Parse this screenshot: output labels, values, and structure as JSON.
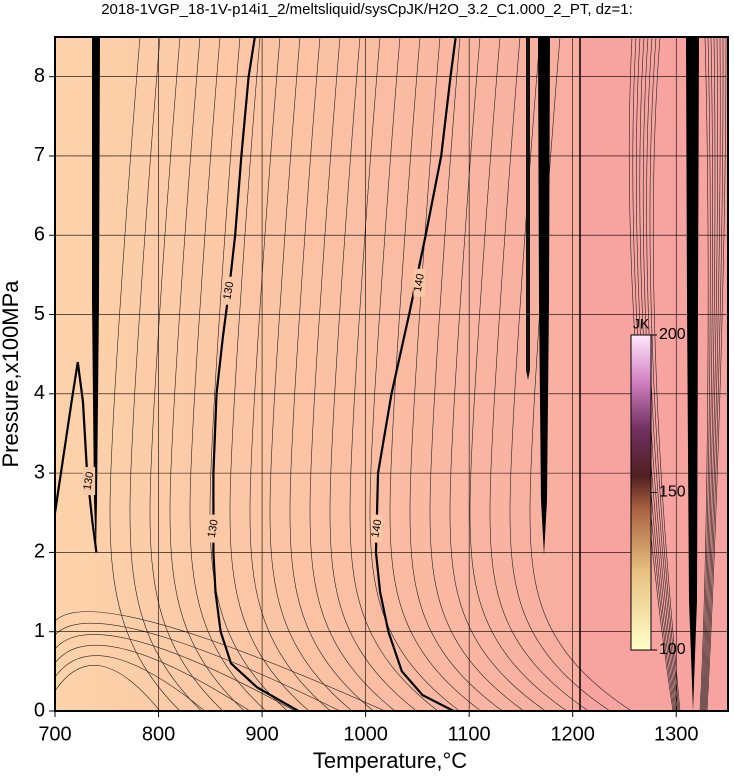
{
  "chart_data": {
    "type": "contour",
    "title": "2018-1VGP_18-1V-p14i1_2/meltsliquid/sysCpJK/H2O_3.2_C1.000_2_PT, dz=1:",
    "xlabel": "Temperature,°C",
    "ylabel": "Pressure,x100MPa",
    "xlim": [
      700,
      1350
    ],
    "ylim": [
      0,
      8.5
    ],
    "xticks": [
      700,
      800,
      900,
      1000,
      1100,
      1200,
      1300
    ],
    "yticks": [
      0,
      1,
      2,
      3,
      4,
      5,
      6,
      7,
      8
    ],
    "grid": true,
    "contours": [
      {
        "level": 130,
        "x": [
          935,
          895,
          870,
          860,
          855,
          853,
          853,
          856,
          862,
          868,
          874,
          880,
          887,
          893
        ],
        "y": [
          0,
          0.3,
          0.6,
          1,
          1.5,
          2,
          3,
          4,
          4.7,
          5.3,
          6,
          7,
          8,
          8.5
        ],
        "label_at": [
          [
            868,
            5.3
          ],
          [
            853,
            2.3
          ]
        ]
      },
      {
        "level": 140,
        "x": [
          1085,
          1055,
          1035,
          1022,
          1014,
          1010,
          1012,
          1025,
          1042,
          1058,
          1073,
          1082,
          1087
        ],
        "y": [
          0,
          0.2,
          0.5,
          1,
          1.5,
          2,
          3,
          4,
          5,
          6,
          7,
          8,
          8.5
        ],
        "label_at": [
          [
            1052,
            5.4
          ],
          [
            1011,
            2.3
          ]
        ]
      },
      {
        "level": 130,
        "x": [
          700,
          708,
          716,
          722,
          727,
          731,
          736,
          740
        ],
        "y": [
          2.5,
          3.2,
          3.9,
          4.4,
          3.9,
          3.0,
          2.4,
          2.0
        ],
        "label_at": [
          [
            733,
            2.9
          ]
        ]
      }
    ],
    "colorbar": {
      "label": "JK",
      "lim": [
        100,
        200
      ],
      "ticks": [
        100,
        150,
        200
      ]
    }
  }
}
